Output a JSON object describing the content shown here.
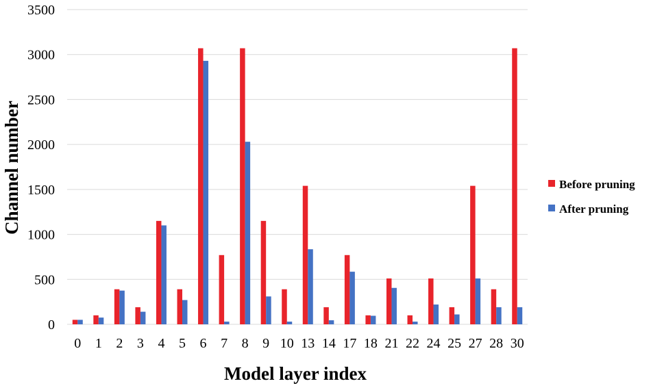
{
  "chart_data": {
    "type": "bar",
    "title": "",
    "xlabel": "Model layer index",
    "ylabel": "Channel number",
    "ylim": [
      0,
      3500
    ],
    "yticks": [
      0,
      500,
      1000,
      1500,
      2000,
      2500,
      3000,
      3500
    ],
    "grid": true,
    "legend_position": "right",
    "categories": [
      "0",
      "1",
      "2",
      "3",
      "4",
      "5",
      "6",
      "7",
      "8",
      "9",
      "10",
      "13",
      "14",
      "17",
      "18",
      "21",
      "22",
      "24",
      "25",
      "27",
      "28",
      "30"
    ],
    "series": [
      {
        "name": "Before pruning",
        "color": "#e8242b",
        "values": [
          50,
          100,
          390,
          190,
          1150,
          390,
          3070,
          770,
          3070,
          1150,
          390,
          1540,
          190,
          770,
          100,
          510,
          100,
          510,
          190,
          1540,
          390,
          3070
        ]
      },
      {
        "name": "After pruning",
        "color": "#4472c4",
        "values": [
          50,
          75,
          375,
          140,
          1100,
          270,
          2930,
          30,
          2030,
          310,
          30,
          835,
          45,
          585,
          95,
          405,
          30,
          220,
          110,
          510,
          190,
          190
        ]
      }
    ]
  }
}
